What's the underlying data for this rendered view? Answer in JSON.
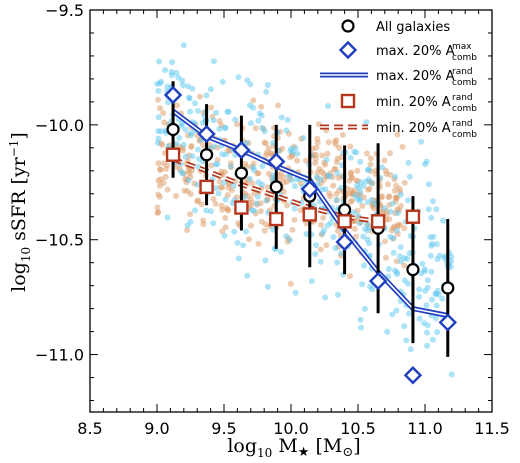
{
  "chart_data": {
    "type": "scatter",
    "xlabel": {
      "base": "log",
      "sub": "10",
      "main": " M",
      "star": "★",
      "unit_open": " [M",
      "unit_sub": "⊙",
      "unit_close": "]"
    },
    "ylabel": {
      "base": "log",
      "sub": "10",
      "main": " sSFR [yr",
      "sup": "−1",
      "close": "]"
    },
    "xlim": [
      8.5,
      11.5
    ],
    "ylim": [
      -11.25,
      -9.5
    ],
    "xticks": [
      "8.5",
      "9.0",
      "9.5",
      "10.0",
      "10.5",
      "11.0",
      "11.5"
    ],
    "yticks": [
      "−9.5",
      "−10.0",
      "−10.5",
      "−11.0"
    ],
    "legend_position": "top-right",
    "legend": [
      {
        "text": "All galaxies",
        "sup": "",
        "sub": ""
      },
      {
        "text": "max. 20% A",
        "sup": "max",
        "sub": "comb"
      },
      {
        "text": "max. 20% A",
        "sup": "rand",
        "sub": "comb"
      },
      {
        "text": "min. 20% A",
        "sup": "rand",
        "sub": "comb"
      },
      {
        "text": "min. 20% A",
        "sup": "rand",
        "sub": "comb"
      }
    ],
    "colors": {
      "all": "#000000",
      "max": "#1f3fbf",
      "min": "#b5381e",
      "blue_scatter": "#5bc7f0",
      "orange_scatter": "#dd9a63"
    },
    "series": [
      {
        "name": "All galaxies",
        "marker": "circle",
        "x": [
          9.12,
          9.37,
          9.63,
          9.89,
          10.14,
          10.4,
          10.65,
          10.91,
          11.17
        ],
        "y": [
          -10.02,
          -10.13,
          -10.21,
          -10.27,
          -10.31,
          -10.37,
          -10.45,
          -10.63,
          -10.71
        ],
        "err": [
          0.21,
          0.22,
          0.25,
          0.27,
          0.31,
          0.28,
          0.37,
          0.32,
          0.3
        ]
      },
      {
        "name": "max. 20% A comb max",
        "marker": "diamond",
        "x": [
          9.12,
          9.37,
          9.63,
          9.89,
          10.14,
          10.4,
          10.65,
          10.91,
          11.17
        ],
        "y": [
          -9.87,
          -10.04,
          -10.11,
          -10.16,
          -10.28,
          -10.51,
          -10.68,
          -11.09,
          -10.86
        ]
      },
      {
        "name": "max. 20% A comb rand",
        "line": "double-solid",
        "x": [
          9.12,
          9.37,
          9.63,
          9.89,
          10.14,
          10.4,
          10.65,
          10.91,
          11.17
        ],
        "y": [
          -9.94,
          -10.05,
          -10.11,
          -10.18,
          -10.24,
          -10.46,
          -10.64,
          -10.8,
          -10.83
        ]
      },
      {
        "name": "min. 20% A comb rand",
        "marker": "square",
        "x": [
          9.12,
          9.37,
          9.63,
          9.89,
          10.14,
          10.4,
          10.65,
          10.91
        ],
        "y": [
          -10.13,
          -10.27,
          -10.36,
          -10.41,
          -10.39,
          -10.42,
          -10.42,
          -10.4
        ]
      },
      {
        "name": "min. 20% A comb rand (dashed)",
        "line": "double-dashed",
        "x": [
          9.12,
          9.37,
          9.63,
          9.89,
          10.14,
          10.4,
          10.65
        ],
        "y": [
          -10.15,
          -10.2,
          -10.26,
          -10.31,
          -10.36,
          -10.4,
          -10.42
        ]
      }
    ]
  }
}
